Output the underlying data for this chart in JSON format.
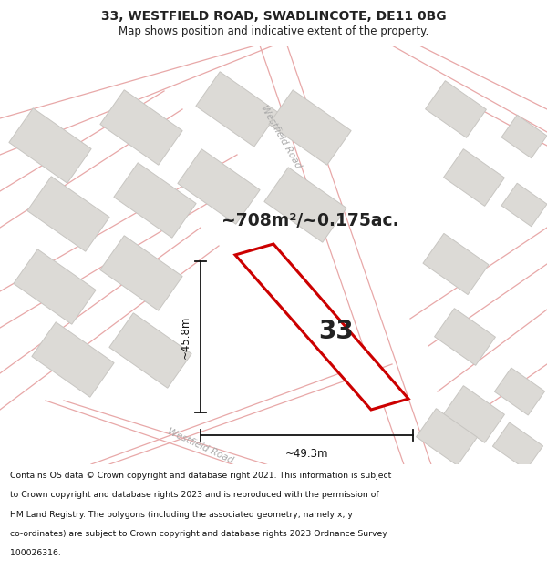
{
  "title_line1": "33, WESTFIELD ROAD, SWADLINCOTE, DE11 0BG",
  "title_line2": "Map shows position and indicative extent of the property.",
  "area_text": "~708m²/~0.175ac.",
  "property_number": "33",
  "dim_horizontal": "~49.3m",
  "dim_vertical": "~45.8m",
  "footer_lines": [
    "Contains OS data © Crown copyright and database right 2021. This information is subject",
    "to Crown copyright and database rights 2023 and is reproduced with the permission of",
    "HM Land Registry. The polygons (including the associated geometry, namely x, y",
    "co-ordinates) are subject to Crown copyright and database rights 2023 Ordnance Survey",
    "100026316."
  ],
  "map_bg": "#f7f5f3",
  "road_line_color": "#e8a8a8",
  "road_fill_color": "#f0e8e8",
  "building_fill": "#dcdad6",
  "building_edge": "#c8c6c2",
  "highlight_fill": "#ffffff",
  "highlight_edge": "#cc0000",
  "text_color": "#222222",
  "footer_color": "#111111",
  "road_label_color": "#aaaaaa",
  "dim_color": "#111111"
}
